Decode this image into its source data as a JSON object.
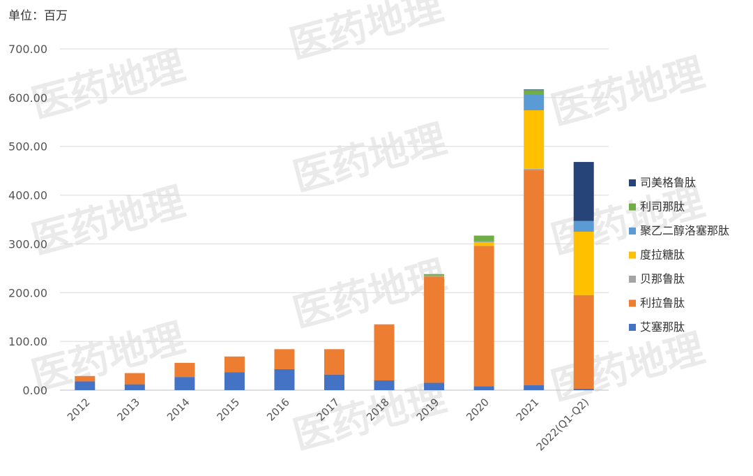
{
  "unit_label": "单位：百万",
  "watermark_text": "医药地理",
  "chart_data": {
    "type": "bar",
    "stacked": true,
    "categories": [
      "2012",
      "2013",
      "2014",
      "2015",
      "2016",
      "2017",
      "2018",
      "2019",
      "2020",
      "2021",
      "2022(Q1-Q2)"
    ],
    "ylim": [
      0,
      700
    ],
    "yticks": [
      "0.00",
      "100.00",
      "200.00",
      "300.00",
      "400.00",
      "500.00",
      "600.00",
      "700.00"
    ],
    "ytick_values": [
      0,
      100,
      200,
      300,
      400,
      500,
      600,
      700
    ],
    "grid": true,
    "legend_position": "right",
    "series": [
      {
        "name": "艾塞那肽",
        "color": "#4472C4",
        "values": [
          18,
          12,
          27,
          37,
          43,
          32,
          20,
          15,
          8,
          10,
          3
        ]
      },
      {
        "name": "利拉鲁肽",
        "color": "#ED7D31",
        "values": [
          11,
          23,
          29,
          32,
          41,
          52,
          115,
          218,
          288,
          442,
          192
        ]
      },
      {
        "name": "贝那鲁肽",
        "color": "#A5A5A5",
        "values": [
          0,
          0,
          0,
          0,
          0,
          0,
          0,
          2,
          0,
          2,
          0
        ]
      },
      {
        "name": "度拉糖肽",
        "color": "#FFC000",
        "values": [
          0,
          0,
          0,
          0,
          0,
          0,
          0,
          0,
          8,
          120,
          130
        ]
      },
      {
        "name": "聚乙二醇洛塞那肽",
        "color": "#5B9BD5",
        "values": [
          0,
          0,
          0,
          0,
          0,
          0,
          0,
          0,
          2,
          33,
          22
        ]
      },
      {
        "name": "利司那肽",
        "color": "#70AD47",
        "values": [
          0,
          0,
          0,
          0,
          0,
          0,
          0,
          3,
          11,
          9,
          0
        ]
      },
      {
        "name": "司美格鲁肽",
        "color": "#264478",
        "values": [
          0,
          0,
          0,
          0,
          0,
          0,
          0,
          0,
          0,
          1,
          121
        ]
      }
    ]
  }
}
